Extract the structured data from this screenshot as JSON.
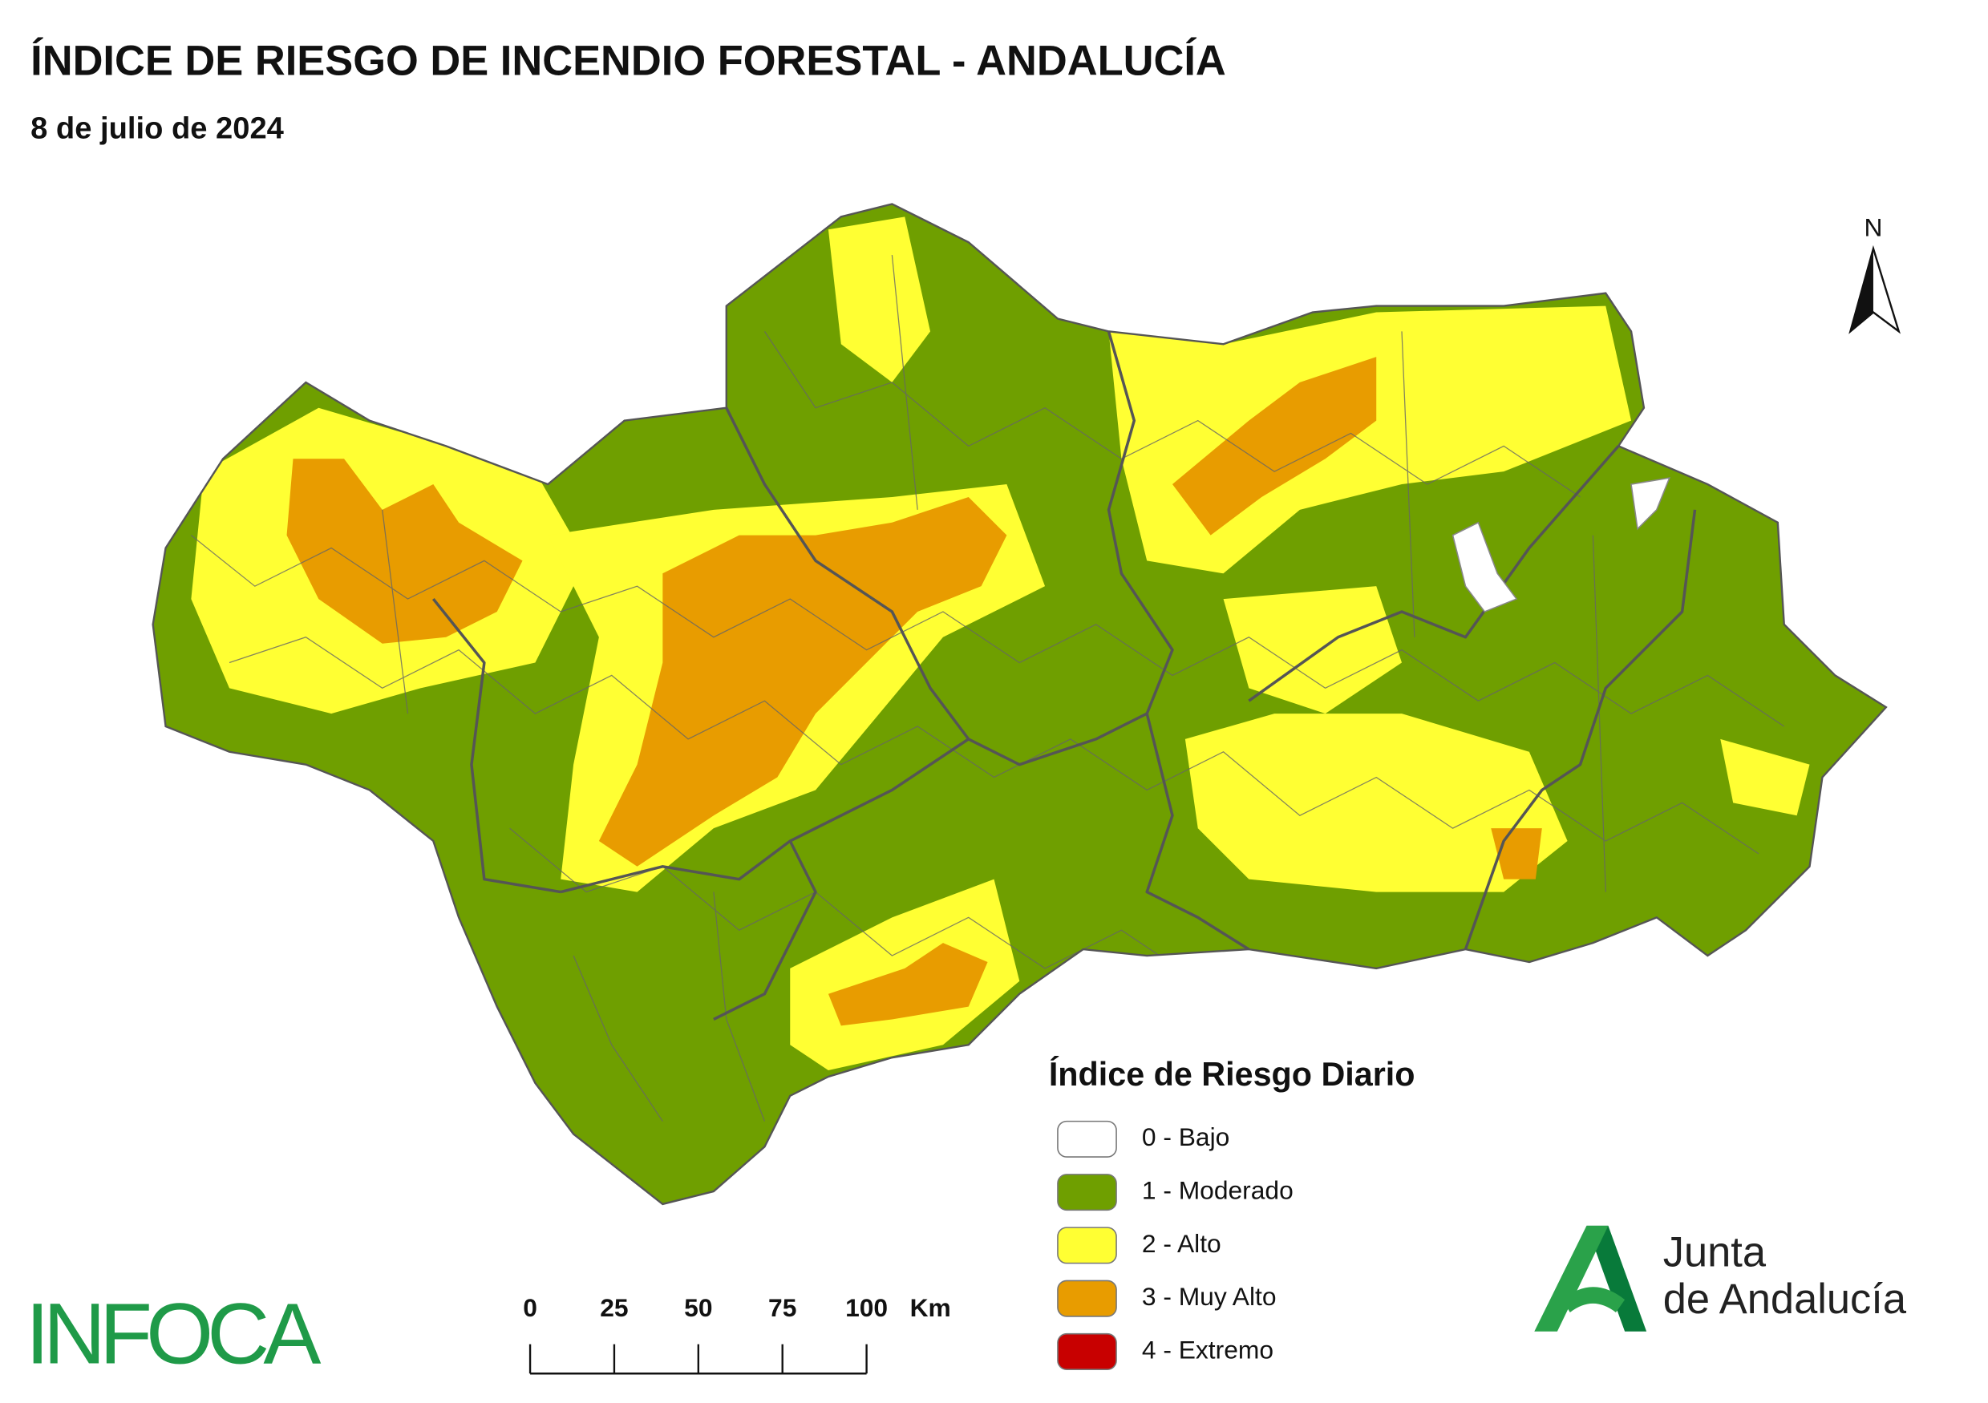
{
  "header": {
    "title": "ÍNDICE DE RIESGO DE INCENDIO FORESTAL - ANDALUCÍA",
    "subtitle": "8 de julio de 2024"
  },
  "north": "N",
  "legend": {
    "title": "Índice de Riesgo Diario",
    "items": [
      {
        "label": "0 - Bajo",
        "color": "#ffffff"
      },
      {
        "label": "1 - Moderado",
        "color": "#6f9f00"
      },
      {
        "label": "2 - Alto",
        "color": "#ffff33"
      },
      {
        "label": "3 - Muy Alto",
        "color": "#e89c00"
      },
      {
        "label": "4 - Extremo",
        "color": "#c80000"
      }
    ]
  },
  "scale_bar": {
    "ticks": [
      0,
      25,
      50,
      75,
      100
    ],
    "unit": "Km"
  },
  "logos": {
    "left": "INFOCA",
    "right_line1": "Junta",
    "right_line2": "de Andalucía"
  }
}
